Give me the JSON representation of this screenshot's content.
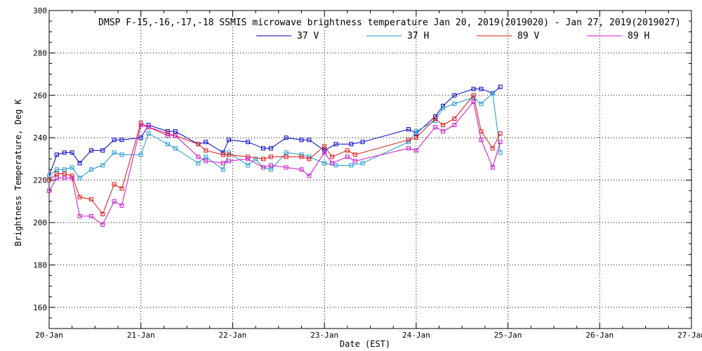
{
  "chart_data": {
    "type": "line",
    "title": "DMSP F-15,-16,-17,-18 SSMIS microwave brightness temperature Jan 20, 2019(2019020) - Jan 27, 2019(2019027)",
    "xlabel": "Date (EST)",
    "ylabel": "Brightness Temperature, Deg K",
    "xlim": [
      "2019-01-20",
      "2019-01-27"
    ],
    "ylim": [
      150,
      300
    ],
    "x_ticks": [
      "20-Jan",
      "21-Jan",
      "22-Jan",
      "23-Jan",
      "24-Jan",
      "25-Jan",
      "26-Jan",
      "27-Jan"
    ],
    "y_ticks": [
      160,
      180,
      200,
      220,
      240,
      260,
      280,
      300
    ],
    "grid": true,
    "legend_position": "top",
    "series": [
      {
        "name": "37 V",
        "color": "#0000c8",
        "x": [
          "2019-01-20 00:00",
          "2019-01-20 02:00",
          "2019-01-20 04:00",
          "2019-01-20 06:00",
          "2019-01-20 08:00",
          "2019-01-20 11:00",
          "2019-01-20 14:00",
          "2019-01-20 17:00",
          "2019-01-20 19:00",
          "2019-01-21 00:00",
          "2019-01-21 02:00",
          "2019-01-21 07:00",
          "2019-01-21 09:00",
          "2019-01-21 15:00",
          "2019-01-21 17:00",
          "2019-01-21 21:30",
          "2019-01-21 23:00",
          "2019-01-22 04:00",
          "2019-01-22 08:00",
          "2019-01-22 10:00",
          "2019-01-22 14:00",
          "2019-01-22 18:00",
          "2019-01-22 20:00",
          "2019-01-23 00:00",
          "2019-01-23 03:00",
          "2019-01-23 07:00",
          "2019-01-23 10:00",
          "2019-01-23 22:00",
          "2019-01-24 00:00",
          "2019-01-24 05:00",
          "2019-01-24 07:00",
          "2019-01-24 10:00",
          "2019-01-24 15:00",
          "2019-01-24 17:00",
          "2019-01-24 20:00",
          "2019-01-24 22:00"
        ],
        "values": [
          222,
          232,
          233,
          233,
          228,
          234,
          234,
          239,
          239,
          240,
          246,
          243,
          243,
          237,
          238,
          233,
          239,
          238,
          235,
          235,
          240,
          239,
          239,
          234,
          237,
          237,
          238,
          244,
          242,
          250,
          255,
          260,
          263,
          263,
          261,
          264
        ]
      },
      {
        "name": "37 H",
        "color": "#1e96d2",
        "x": [
          "2019-01-20 00:00",
          "2019-01-20 02:00",
          "2019-01-20 04:00",
          "2019-01-20 06:00",
          "2019-01-20 08:00",
          "2019-01-20 11:00",
          "2019-01-20 14:00",
          "2019-01-20 17:00",
          "2019-01-20 19:00",
          "2019-01-21 00:00",
          "2019-01-21 02:00",
          "2019-01-21 07:00",
          "2019-01-21 09:00",
          "2019-01-21 15:00",
          "2019-01-21 17:00",
          "2019-01-21 21:30",
          "2019-01-21 23:00",
          "2019-01-22 04:00",
          "2019-01-22 06:00",
          "2019-01-22 08:00",
          "2019-01-22 10:00",
          "2019-01-22 14:00",
          "2019-01-22 18:00",
          "2019-01-22 20:00",
          "2019-01-23 00:00",
          "2019-01-23 03:00",
          "2019-01-23 07:00",
          "2019-01-23 10:00",
          "2019-01-23 22:00",
          "2019-01-24 00:00",
          "2019-01-24 05:00",
          "2019-01-24 07:00",
          "2019-01-24 10:00",
          "2019-01-24 15:00",
          "2019-01-24 17:00",
          "2019-01-24 20:00",
          "2019-01-24 22:00"
        ],
        "values": [
          222,
          225,
          225,
          226,
          221,
          225,
          227,
          233,
          232,
          232,
          242,
          237,
          235,
          228,
          231,
          225,
          233,
          227,
          230,
          226,
          225,
          233,
          232,
          231,
          228,
          227,
          227,
          228,
          238,
          243,
          248,
          254,
          256,
          259,
          256,
          261,
          233
        ]
      },
      {
        "name": "89 V",
        "color": "#dc1414",
        "x": [
          "2019-01-20 00:00",
          "2019-01-20 02:00",
          "2019-01-20 04:00",
          "2019-01-20 06:00",
          "2019-01-20 08:00",
          "2019-01-20 11:00",
          "2019-01-20 14:00",
          "2019-01-20 17:00",
          "2019-01-20 19:00",
          "2019-01-21 00:00",
          "2019-01-21 02:00",
          "2019-01-21 07:00",
          "2019-01-21 09:00",
          "2019-01-21 15:00",
          "2019-01-21 17:00",
          "2019-01-21 21:30",
          "2019-01-21 23:00",
          "2019-01-22 04:00",
          "2019-01-22 08:00",
          "2019-01-22 10:00",
          "2019-01-22 14:00",
          "2019-01-22 18:00",
          "2019-01-22 20:00",
          "2019-01-23 00:00",
          "2019-01-23 02:00",
          "2019-01-23 06:00",
          "2019-01-23 08:00",
          "2019-01-23 22:00",
          "2019-01-24 00:00",
          "2019-01-24 05:00",
          "2019-01-24 07:00",
          "2019-01-24 10:00",
          "2019-01-24 15:00",
          "2019-01-24 17:00",
          "2019-01-24 20:00",
          "2019-01-24 22:00"
        ],
        "values": [
          220,
          223,
          223,
          222,
          212,
          211,
          204,
          218,
          216,
          247,
          245,
          242,
          241,
          237,
          234,
          232,
          232,
          231,
          230,
          231,
          231,
          231,
          230,
          236,
          231,
          234,
          232,
          239,
          240,
          249,
          246,
          249,
          260,
          243,
          235,
          242
        ]
      },
      {
        "name": "89 H",
        "color": "#c814c8",
        "x": [
          "2019-01-20 00:00",
          "2019-01-20 02:00",
          "2019-01-20 04:00",
          "2019-01-20 06:00",
          "2019-01-20 08:00",
          "2019-01-20 11:00",
          "2019-01-20 14:00",
          "2019-01-20 17:00",
          "2019-01-20 19:00",
          "2019-01-21 00:00",
          "2019-01-21 02:00",
          "2019-01-21 07:00",
          "2019-01-21 09:00",
          "2019-01-21 15:00",
          "2019-01-21 17:00",
          "2019-01-21 21:30",
          "2019-01-21 23:00",
          "2019-01-22 04:00",
          "2019-01-22 08:00",
          "2019-01-22 10:00",
          "2019-01-22 14:00",
          "2019-01-22 18:00",
          "2019-01-22 20:00",
          "2019-01-23 00:00",
          "2019-01-23 02:00",
          "2019-01-23 06:00",
          "2019-01-23 08:00",
          "2019-01-23 22:00",
          "2019-01-24 00:00",
          "2019-01-24 05:00",
          "2019-01-24 07:00",
          "2019-01-24 10:00",
          "2019-01-24 15:00",
          "2019-01-24 17:00",
          "2019-01-24 20:00",
          "2019-01-24 22:00"
        ],
        "values": [
          215,
          221,
          221,
          221,
          203,
          203,
          199,
          210,
          208,
          246,
          245,
          241,
          241,
          231,
          229,
          228,
          229,
          230,
          226,
          227,
          226,
          225,
          222,
          233,
          228,
          231,
          229,
          235,
          234,
          245,
          243,
          246,
          257,
          239,
          226,
          238
        ]
      }
    ]
  }
}
